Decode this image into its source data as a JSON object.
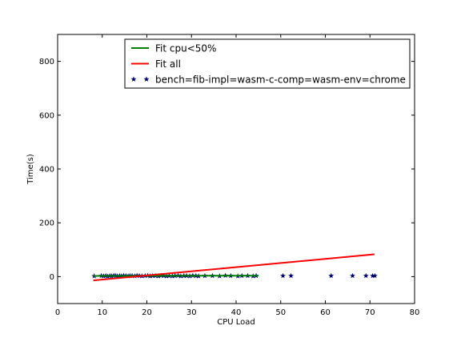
{
  "chart_data": {
    "type": "scatter",
    "title": "",
    "xlabel": "CPU Load",
    "ylabel": "Time(s)",
    "xlim": [
      0,
      80
    ],
    "ylim": [
      -100,
      900
    ],
    "xticks": [
      0,
      10,
      20,
      30,
      40,
      50,
      60,
      70,
      80
    ],
    "yticks": [
      0,
      200,
      400,
      600,
      800
    ],
    "grid": false,
    "legend_position": "top-center",
    "series": [
      {
        "name": "Fit cpu<50%",
        "type": "line",
        "color": "#008000",
        "x": [
          8,
          45
        ],
        "y": [
          2.8,
          3.6
        ]
      },
      {
        "name": "Fit all",
        "type": "line",
        "color": "#ff0000",
        "x": [
          8,
          71
        ],
        "y": [
          -14,
          83
        ]
      },
      {
        "name": "bench=fib-impl=wasm-c-comp=wasm-env=chrome",
        "type": "scatter",
        "marker": "star",
        "color": "#000080",
        "x": [
          8.2,
          9.8,
          10.3,
          10.8,
          11.2,
          11.7,
          12.1,
          12.6,
          13.0,
          13.4,
          13.9,
          14.3,
          14.8,
          15.3,
          15.8,
          16.2,
          16.7,
          17.3,
          17.8,
          18.3,
          18.9,
          19.6,
          20.2,
          20.7,
          21.3,
          21.9,
          22.6,
          23.2,
          23.8,
          24.4,
          25.0,
          25.7,
          26.3,
          27.0,
          27.6,
          28.3,
          28.9,
          29.6,
          30.3,
          31.0,
          31.6,
          33.0,
          34.7,
          36.3,
          37.6,
          38.8,
          40.4,
          41.3,
          42.6,
          43.8,
          44.5,
          50.5,
          52.3,
          61.3,
          66.1,
          69.1,
          70.6,
          71.1
        ],
        "y": [
          2,
          3,
          2,
          3,
          1,
          3,
          2,
          4,
          3,
          2,
          3,
          2,
          4,
          3,
          2,
          3,
          3,
          2,
          4,
          3,
          2,
          3,
          4,
          2,
          3,
          3,
          2,
          4,
          3,
          2,
          3,
          2,
          3,
          4,
          2,
          3,
          3,
          2,
          4,
          3,
          2,
          3,
          3,
          2,
          4,
          3,
          2,
          3,
          3,
          2,
          3,
          3,
          3,
          3,
          3,
          3,
          3,
          3
        ]
      }
    ]
  }
}
